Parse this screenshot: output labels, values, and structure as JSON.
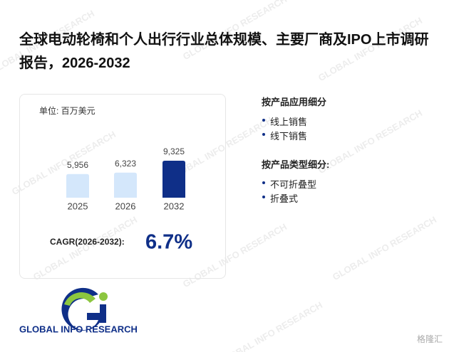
{
  "header": {
    "title": "全球电动轮椅和个人出行行业总体规模、主要厂商及IPO上市调研报告，2026-2032"
  },
  "chart_data": {
    "type": "bar",
    "unit": "单位: 百万美元",
    "categories": [
      "2025",
      "2026",
      "2032"
    ],
    "values": [
      5956,
      6323,
      9325
    ],
    "value_labels": [
      "5,956",
      "6,323",
      "9,325"
    ],
    "colors": [
      "#d4e7fb",
      "#d4e7fb",
      "#0f2f88"
    ],
    "cagr_label": "CAGR(2026-2032):",
    "cagr_value": "6.7%"
  },
  "segments": [
    {
      "title": "按产品应用细分",
      "items": [
        "线上销售",
        "线下销售"
      ]
    },
    {
      "title": "按产品类型细分:",
      "items": [
        "不可折叠型",
        "折叠式"
      ]
    }
  ],
  "logo": {
    "text": "GLOBAL INFO RESEARCH"
  },
  "watermark": "GLOBAL INFO RESEARCH",
  "brand": "格隆汇"
}
